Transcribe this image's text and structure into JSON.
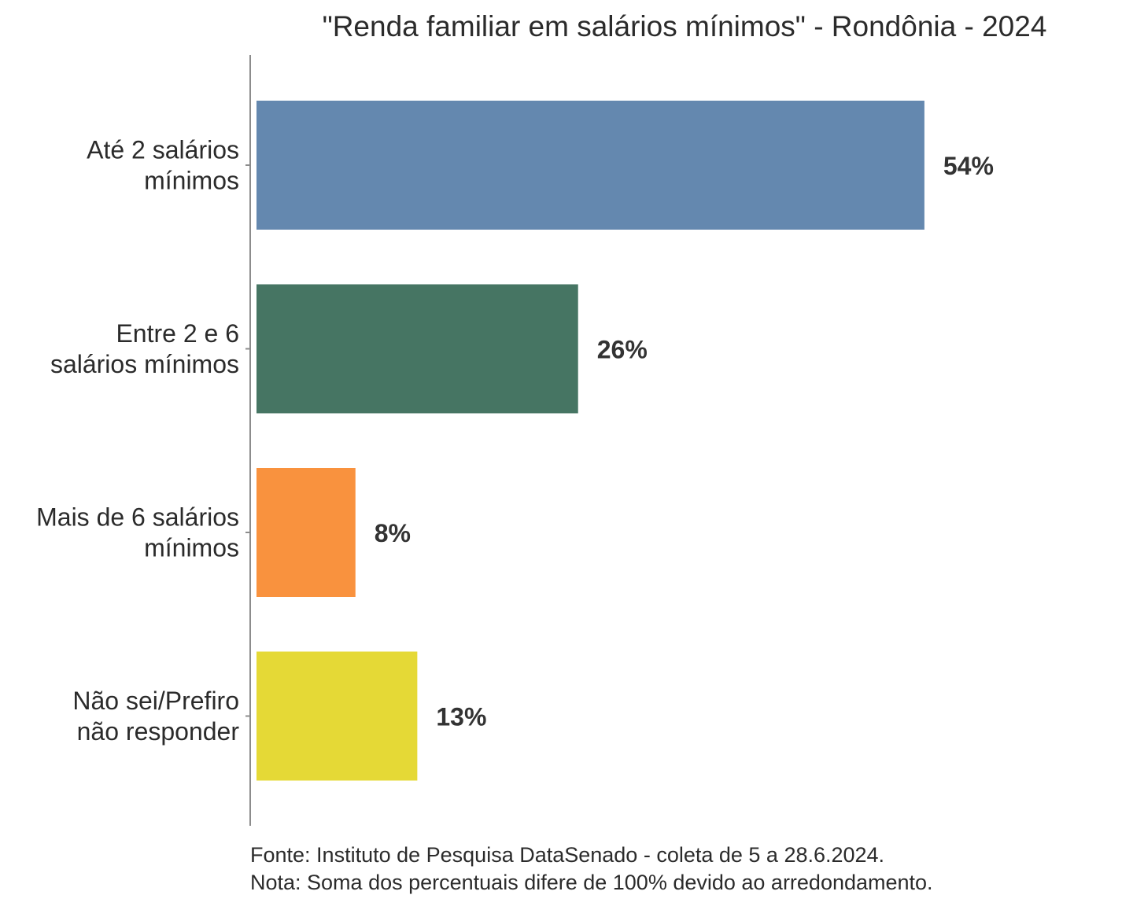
{
  "chart_data": {
    "type": "bar",
    "orientation": "horizontal",
    "title": "\"Renda familiar em salários mínimos\" - Rondônia - 2024",
    "categories": [
      [
        "Até 2 salários",
        "mínimos"
      ],
      [
        "Entre 2 e 6",
        "salários mínimos"
      ],
      [
        "Mais de 6 salários",
        "mínimos"
      ],
      [
        "Não sei/Prefiro",
        "não responder"
      ]
    ],
    "values": [
      54,
      26,
      8,
      13
    ],
    "value_labels": [
      "54%",
      "26%",
      "8%",
      "13%"
    ],
    "colors": [
      "#6488af",
      "#467563",
      "#f9923e",
      "#e5d936"
    ],
    "unit": "%",
    "xlim": [
      0,
      54
    ],
    "grid": false,
    "legend": "none"
  },
  "footer": {
    "source": "Fonte: Instituto de Pesquisa DataSenado - coleta de 5 a 28.6.2024.",
    "note": "Nota: Soma dos percentuais difere de 100% devido ao arredondamento."
  }
}
